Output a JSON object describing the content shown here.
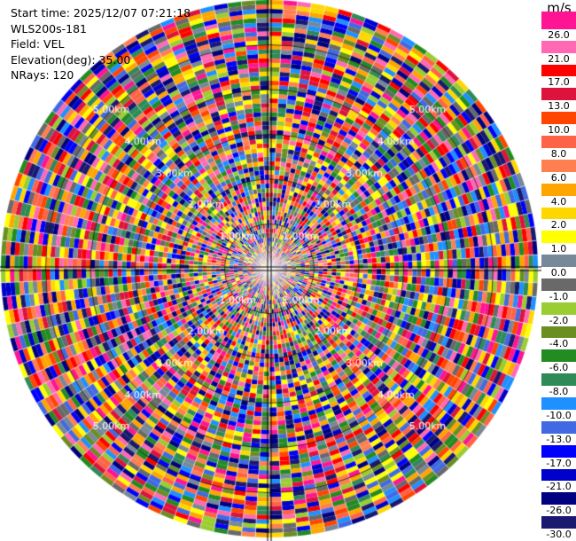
{
  "info": {
    "start_time": "Start time: 2025/12/07 07:21:18",
    "site": "WLS200s-181",
    "field": "Field: VEL",
    "elevation": "Elevation(deg): 35.00",
    "nrays": "NRays: 120"
  },
  "colorbar": {
    "unit": "m/s",
    "ticks": [
      "26.0",
      "21.0",
      "17.0",
      "13.0",
      "10.0",
      "8.0",
      "6.0",
      "4.0",
      "2.0",
      "1.0",
      "0.0",
      "-1.0",
      "-2.0",
      "-4.0",
      "-6.0",
      "-8.0",
      "-10.0",
      "-13.0",
      "-17.0",
      "-21.0",
      "-26.0",
      "-30.0"
    ],
    "colors": [
      "#ff1493",
      "#ff69b4",
      "#ff0000",
      "#dc143c",
      "#ff4500",
      "#ff6347",
      "#ff7f50",
      "#ffa500",
      "#ffd700",
      "#ffff00",
      "#778899",
      "#696969",
      "#9acd32",
      "#6b8e23",
      "#228b22",
      "#2e8b57",
      "#1e90ff",
      "#4169e1",
      "#0000ff",
      "#0000cd",
      "#000080",
      "#191970"
    ]
  },
  "range_labels": [
    "1.00km",
    "2.00km",
    "3.00km",
    "4.00km",
    "5.00km"
  ],
  "nrays": 120
}
